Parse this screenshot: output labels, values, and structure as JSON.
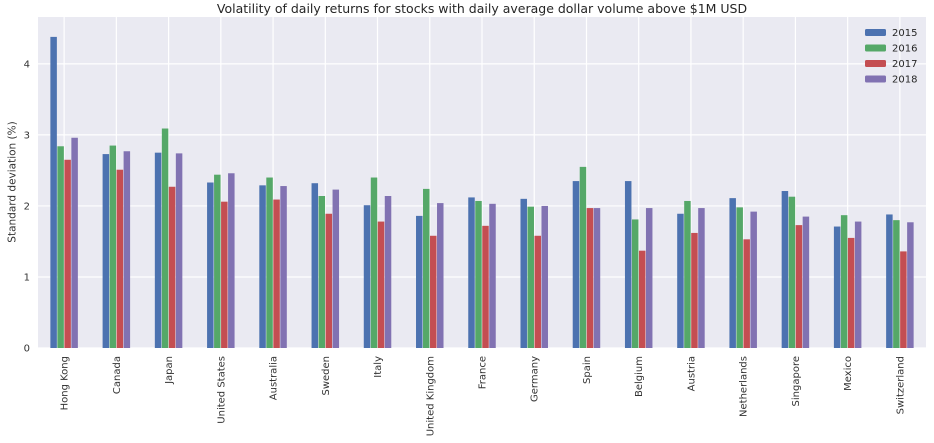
{
  "chart_data": {
    "type": "bar",
    "title": "Volatility of daily returns for stocks with daily average dollar volume above $1M USD",
    "xlabel": "",
    "ylabel": "Standard deviation (%)",
    "ylim": [
      0,
      4.66
    ],
    "y_ticks": [
      0,
      1,
      2,
      3,
      4
    ],
    "grid": true,
    "legend_position": "upper right",
    "plot_background": "#eaeaf2",
    "grid_color": "#ffffff",
    "categories": [
      "Hong Kong",
      "Canada",
      "Japan",
      "United States",
      "Australia",
      "Sweden",
      "Italy",
      "United Kingdom",
      "France",
      "Germany",
      "Spain",
      "Belgium",
      "Austria",
      "Netherlands",
      "Singapore",
      "Mexico",
      "Switzerland"
    ],
    "series": [
      {
        "name": "2015",
        "color": "#4c72b0",
        "values": [
          4.38,
          2.73,
          2.75,
          2.33,
          2.29,
          2.32,
          2.01,
          1.86,
          2.12,
          2.1,
          2.35,
          2.35,
          1.89,
          2.11,
          2.21,
          1.71,
          1.88
        ]
      },
      {
        "name": "2016",
        "color": "#55a868",
        "values": [
          2.84,
          2.85,
          3.09,
          2.44,
          2.4,
          2.14,
          2.4,
          2.24,
          2.07,
          1.99,
          2.55,
          1.81,
          2.07,
          1.98,
          2.13,
          1.87,
          1.8
        ]
      },
      {
        "name": "2017",
        "color": "#c44e52",
        "values": [
          2.65,
          2.51,
          2.27,
          2.06,
          2.09,
          1.89,
          1.78,
          1.58,
          1.72,
          1.58,
          1.97,
          1.37,
          1.62,
          1.53,
          1.73,
          1.55,
          1.36
        ]
      },
      {
        "name": "2018",
        "color": "#8172b2",
        "values": [
          2.96,
          2.77,
          2.74,
          2.46,
          2.28,
          2.23,
          2.14,
          2.04,
          2.03,
          2.0,
          1.97,
          1.97,
          1.97,
          1.92,
          1.85,
          1.78,
          1.77
        ]
      }
    ]
  }
}
